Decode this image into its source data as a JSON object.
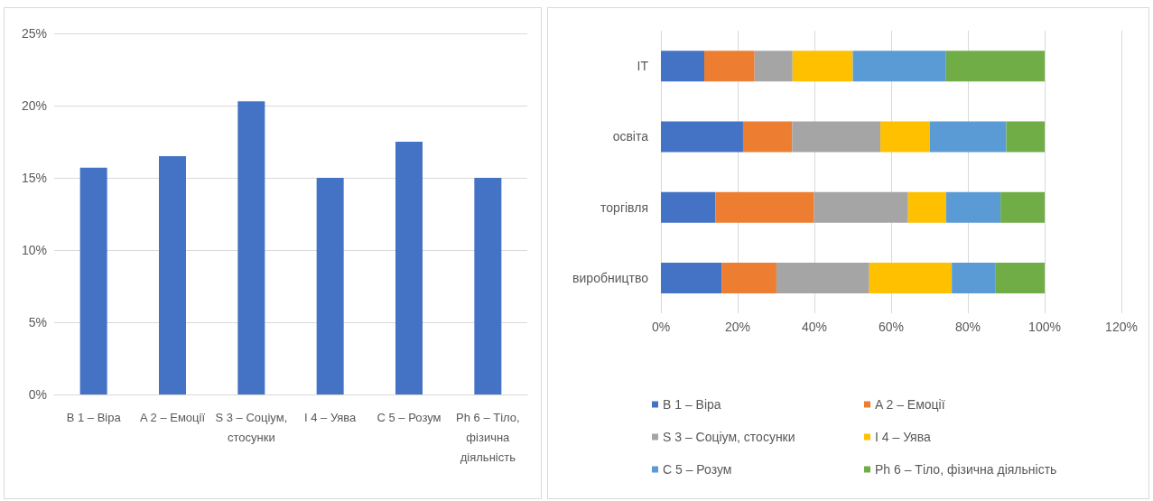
{
  "chart_data": [
    {
      "type": "bar",
      "categories": [
        "B 1 – Віра",
        "A 2 – Емоції",
        "S 3 – Соціум, стосунки",
        "I 4 – Уява",
        "C 5 – Розум",
        "Ph 6 – Тіло, фізична діяльність"
      ],
      "values": [
        15.7,
        16.5,
        20.3,
        15.0,
        17.5,
        15.0
      ],
      "color": "#4472c4",
      "ylim": [
        0,
        25
      ],
      "yticks": [
        {
          "value": 0,
          "label": "0%"
        },
        {
          "value": 5,
          "label": "5%"
        },
        {
          "value": 10,
          "label": "10%"
        },
        {
          "value": 15,
          "label": "15%"
        },
        {
          "value": 20,
          "label": "20%"
        },
        {
          "value": 25,
          "label": "25%"
        }
      ],
      "grid": "y",
      "legend": false
    },
    {
      "type": "bar",
      "orientation": "horizontal",
      "stacked": true,
      "categories": [
        "IT",
        "освіта",
        "торгівля",
        "виробництво"
      ],
      "series": [
        {
          "name": "B 1 – Віра",
          "color": "#4472c4",
          "values": [
            11.3,
            21.4,
            14.2,
            15.8
          ]
        },
        {
          "name": "A 2 – Емоції",
          "color": "#ed7d31",
          "values": [
            13.1,
            12.8,
            25.7,
            14.3
          ]
        },
        {
          "name": "S 3 – Соціум, стосунки",
          "color": "#a5a5a5",
          "values": [
            9.9,
            23.0,
            24.5,
            24.2
          ]
        },
        {
          "name": "I 4 – Уява",
          "color": "#ffc000",
          "values": [
            15.7,
            12.9,
            9.9,
            21.5
          ]
        },
        {
          "name": "C 5 – Розум",
          "color": "#5b9bd5",
          "values": [
            24.3,
            19.9,
            14.2,
            11.3
          ]
        },
        {
          "name": "Ph 6 – Тіло, фізична діяльність",
          "color": "#70ad47",
          "values": [
            25.7,
            10.0,
            11.5,
            12.9
          ]
        }
      ],
      "xlim": [
        0,
        120
      ],
      "xticks": [
        {
          "value": 0,
          "label": "0%"
        },
        {
          "value": 20,
          "label": "20%"
        },
        {
          "value": 40,
          "label": "40%"
        },
        {
          "value": 60,
          "label": "60%"
        },
        {
          "value": 80,
          "label": "80%"
        },
        {
          "value": 100,
          "label": "100%"
        },
        {
          "value": 120,
          "label": "120%"
        }
      ],
      "grid": "x",
      "legend": "bottom"
    }
  ]
}
